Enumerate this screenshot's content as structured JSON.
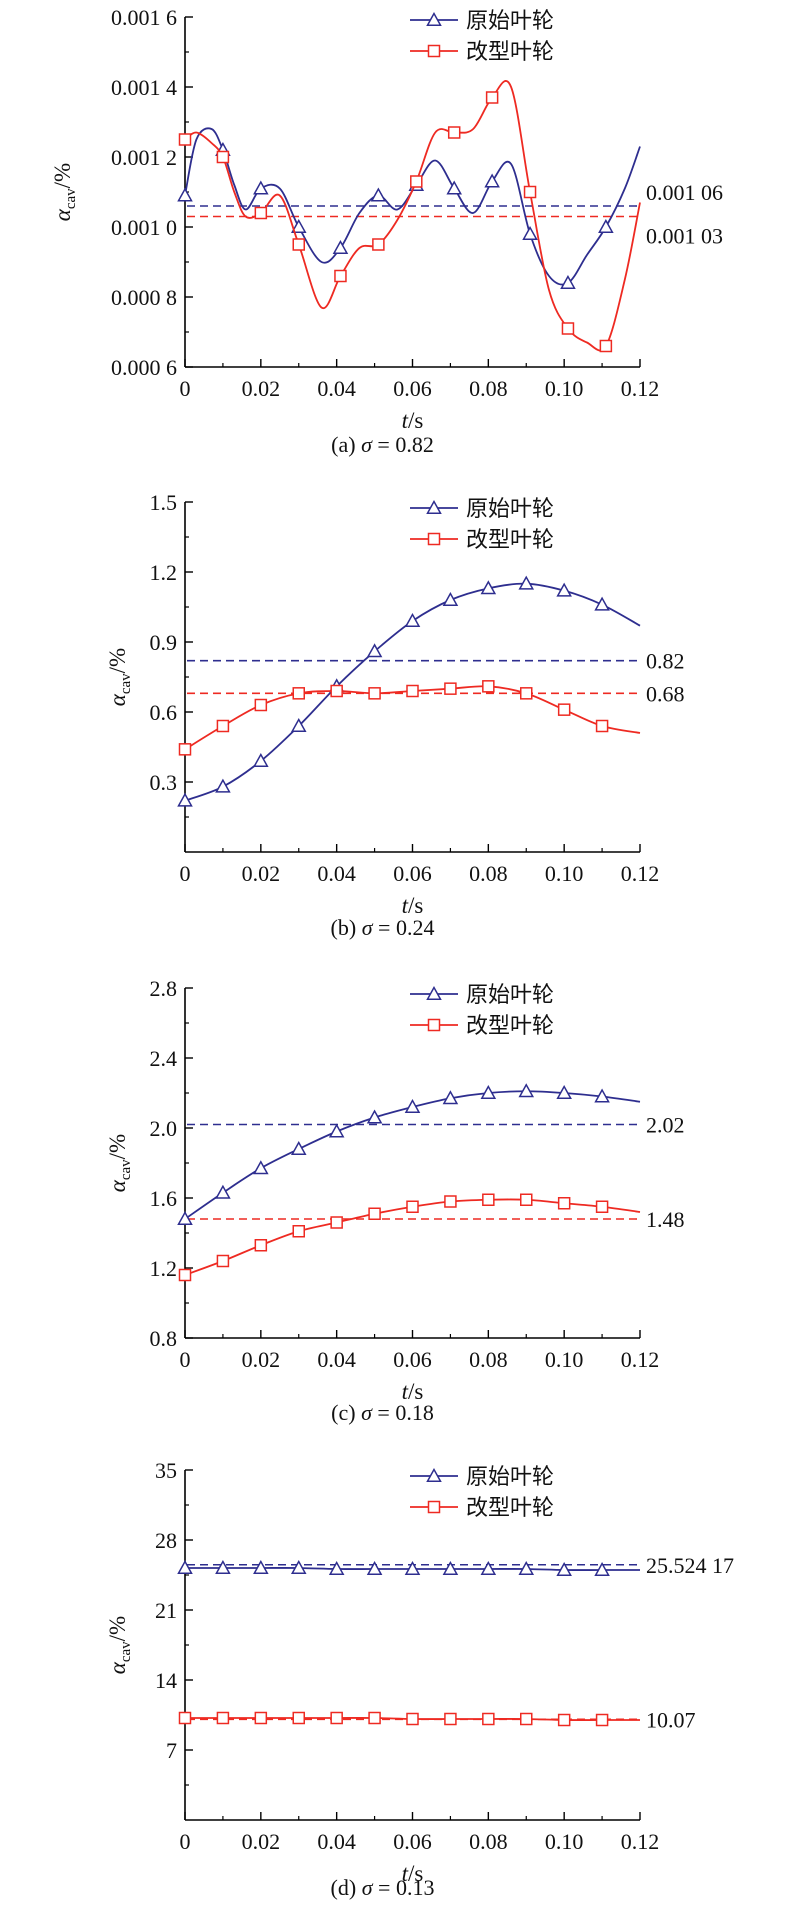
{
  "colors": {
    "original": "#2e2e8f",
    "modified": "#ee2a22",
    "axis": "#000000"
  },
  "chart_data": [
    {
      "type": "line",
      "caption": "(a) σ = 0.82",
      "xlabel": "t/s",
      "ylabel": "α_cav/%",
      "xlim": [
        0,
        0.12
      ],
      "ylim": [
        0.0006,
        0.0016
      ],
      "xticks": [
        0,
        0.02,
        0.04,
        0.06,
        0.08,
        0.1,
        0.12
      ],
      "xtick_labels": [
        "0",
        "0.02",
        "0.04",
        "0.06",
        "0.08",
        "0.10",
        "0.12"
      ],
      "yticks": [
        0.0006,
        0.0008,
        0.001,
        0.0012,
        0.0014,
        0.0016
      ],
      "ytick_labels": [
        "0.000 6",
        "0.000 8",
        "0.001 0",
        "0.001 2",
        "0.001 4",
        "0.001 6"
      ],
      "legend_position": "top",
      "series": [
        {
          "name": "原始叶轮",
          "marker": "triangle",
          "x": [
            0,
            0.003,
            0.007,
            0.01,
            0.013,
            0.016,
            0.02,
            0.025,
            0.03,
            0.036,
            0.041,
            0.046,
            0.051,
            0.056,
            0.061,
            0.066,
            0.071,
            0.076,
            0.081,
            0.086,
            0.091,
            0.096,
            0.101,
            0.106,
            0.111,
            0.116,
            0.12
          ],
          "y": [
            0.00109,
            0.00125,
            0.00128,
            0.00122,
            0.00112,
            0.00105,
            0.00111,
            0.00111,
            0.001,
            0.0009,
            0.00094,
            0.00104,
            0.00109,
            0.00105,
            0.00112,
            0.00119,
            0.00111,
            0.00104,
            0.00113,
            0.00118,
            0.00098,
            0.00086,
            0.00084,
            0.00092,
            0.001,
            0.00111,
            0.00123
          ]
        },
        {
          "name": "改型叶轮",
          "marker": "square",
          "x": [
            0,
            0.003,
            0.007,
            0.01,
            0.013,
            0.016,
            0.02,
            0.025,
            0.03,
            0.036,
            0.041,
            0.046,
            0.051,
            0.056,
            0.061,
            0.066,
            0.071,
            0.076,
            0.081,
            0.086,
            0.091,
            0.096,
            0.101,
            0.106,
            0.111,
            0.116,
            0.12
          ],
          "y": [
            0.00125,
            0.00127,
            0.00124,
            0.0012,
            0.0011,
            0.00103,
            0.00104,
            0.00109,
            0.00095,
            0.00077,
            0.00086,
            0.00094,
            0.00095,
            0.00102,
            0.00113,
            0.00127,
            0.00127,
            0.00128,
            0.00137,
            0.0014,
            0.0011,
            0.00082,
            0.00071,
            0.00067,
            0.00066,
            0.00085,
            0.00107
          ]
        }
      ],
      "references": [
        {
          "series": "原始叶轮",
          "value": 0.00106,
          "label": "0.001 06"
        },
        {
          "series": "改型叶轮",
          "value": 0.00103,
          "label": "0.001 03"
        }
      ]
    },
    {
      "type": "line",
      "caption": "(b) σ = 0.24",
      "xlabel": "t/s",
      "ylabel": "α_cav/%",
      "xlim": [
        0,
        0.12
      ],
      "ylim": [
        0,
        1.5
      ],
      "xticks": [
        0,
        0.02,
        0.04,
        0.06,
        0.08,
        0.1,
        0.12
      ],
      "xtick_labels": [
        "0",
        "0.02",
        "0.04",
        "0.06",
        "0.08",
        "0.10",
        "0.12"
      ],
      "yticks": [
        0.3,
        0.6,
        0.9,
        1.2,
        1.5
      ],
      "ytick_labels": [
        "0.3",
        "0.6",
        "0.9",
        "1.2",
        "1.5"
      ],
      "legend_position": "top",
      "series": [
        {
          "name": "原始叶轮",
          "marker": "triangle",
          "x": [
            0,
            0.01,
            0.02,
            0.03,
            0.04,
            0.05,
            0.06,
            0.07,
            0.08,
            0.09,
            0.1,
            0.11,
            0.12
          ],
          "y": [
            0.22,
            0.28,
            0.39,
            0.54,
            0.71,
            0.86,
            0.99,
            1.08,
            1.13,
            1.15,
            1.12,
            1.06,
            0.97
          ]
        },
        {
          "name": "改型叶轮",
          "marker": "square",
          "x": [
            0,
            0.01,
            0.02,
            0.03,
            0.04,
            0.05,
            0.06,
            0.07,
            0.08,
            0.09,
            0.1,
            0.11,
            0.12
          ],
          "y": [
            0.44,
            0.54,
            0.63,
            0.68,
            0.69,
            0.68,
            0.69,
            0.7,
            0.71,
            0.68,
            0.61,
            0.54,
            0.51
          ]
        }
      ],
      "references": [
        {
          "series": "原始叶轮",
          "value": 0.82,
          "label": "0.82"
        },
        {
          "series": "改型叶轮",
          "value": 0.68,
          "label": "0.68"
        }
      ]
    },
    {
      "type": "line",
      "caption": "(c) σ = 0.18",
      "xlabel": "t/s",
      "ylabel": "α_cav/%",
      "xlim": [
        0,
        0.12
      ],
      "ylim": [
        0.8,
        2.8
      ],
      "xticks": [
        0,
        0.02,
        0.04,
        0.06,
        0.08,
        0.1,
        0.12
      ],
      "xtick_labels": [
        "0",
        "0.02",
        "0.04",
        "0.06",
        "0.08",
        "0.10",
        "0.12"
      ],
      "yticks": [
        0.8,
        1.2,
        1.6,
        2.0,
        2.4,
        2.8
      ],
      "ytick_labels": [
        "0.8",
        "1.2",
        "1.6",
        "2.0",
        "2.4",
        "2.8"
      ],
      "legend_position": "top",
      "series": [
        {
          "name": "原始叶轮",
          "marker": "triangle",
          "x": [
            0,
            0.01,
            0.02,
            0.03,
            0.04,
            0.05,
            0.06,
            0.07,
            0.08,
            0.09,
            0.1,
            0.11,
            0.12
          ],
          "y": [
            1.48,
            1.63,
            1.77,
            1.88,
            1.98,
            2.06,
            2.12,
            2.17,
            2.2,
            2.21,
            2.2,
            2.18,
            2.15
          ]
        },
        {
          "name": "改型叶轮",
          "marker": "square",
          "x": [
            0,
            0.01,
            0.02,
            0.03,
            0.04,
            0.05,
            0.06,
            0.07,
            0.08,
            0.09,
            0.1,
            0.11,
            0.12
          ],
          "y": [
            1.16,
            1.24,
            1.33,
            1.41,
            1.46,
            1.51,
            1.55,
            1.58,
            1.59,
            1.59,
            1.57,
            1.55,
            1.52
          ]
        }
      ],
      "references": [
        {
          "series": "原始叶轮",
          "value": 2.02,
          "label": "2.02"
        },
        {
          "series": "改型叶轮",
          "value": 1.48,
          "label": "1.48"
        }
      ]
    },
    {
      "type": "line",
      "caption": "(d) σ = 0.13",
      "xlabel": "t/s",
      "ylabel": "α_cav/%",
      "xlim": [
        0,
        0.12
      ],
      "ylim": [
        0,
        35
      ],
      "xticks": [
        0,
        0.02,
        0.04,
        0.06,
        0.08,
        0.1,
        0.12
      ],
      "xtick_labels": [
        "0",
        "0.02",
        "0.04",
        "0.06",
        "0.08",
        "0.10",
        "0.12"
      ],
      "yticks": [
        7,
        14,
        21,
        28,
        35
      ],
      "ytick_labels": [
        "7",
        "14",
        "21",
        "28",
        "35"
      ],
      "legend_position": "top",
      "series": [
        {
          "name": "原始叶轮",
          "marker": "triangle",
          "x": [
            0,
            0.01,
            0.02,
            0.03,
            0.04,
            0.05,
            0.06,
            0.07,
            0.08,
            0.09,
            0.1,
            0.11,
            0.12
          ],
          "y": [
            25.2,
            25.2,
            25.2,
            25.2,
            25.1,
            25.1,
            25.1,
            25.1,
            25.1,
            25.1,
            25.0,
            25.0,
            25.0
          ]
        },
        {
          "name": "改型叶轮",
          "marker": "square",
          "x": [
            0,
            0.01,
            0.02,
            0.03,
            0.04,
            0.05,
            0.06,
            0.07,
            0.08,
            0.09,
            0.1,
            0.11,
            0.12
          ],
          "y": [
            10.2,
            10.2,
            10.2,
            10.2,
            10.2,
            10.2,
            10.1,
            10.1,
            10.1,
            10.1,
            10.0,
            10.0,
            10.0
          ]
        }
      ],
      "references": [
        {
          "series": "原始叶轮",
          "value": 25.52417,
          "label": "25.524 17"
        },
        {
          "series": "改型叶轮",
          "value": 10.07,
          "label": "10.07"
        }
      ]
    }
  ]
}
